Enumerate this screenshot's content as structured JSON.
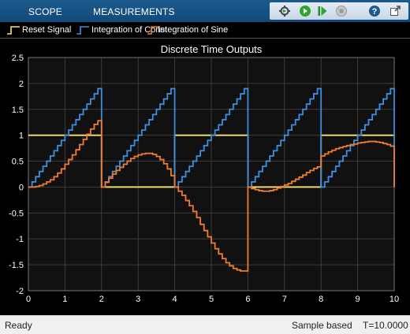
{
  "toolstrip": {
    "tabs": [
      "SCOPE",
      "MEASUREMENTS"
    ],
    "buttons": [
      "step-settings-icon",
      "run-icon",
      "step-forward-icon",
      "stop-icon",
      "help-icon",
      "undock-icon"
    ]
  },
  "colors": {
    "reset": "#ffe36e",
    "constant": "#3d8fe0",
    "sine": "#f07c2f",
    "axes_bg": "#111111",
    "grid": "#3c3c3c",
    "text": "#ffffff"
  },
  "legend": {
    "items": [
      "Reset Signal",
      "Integration of Const",
      "Integration of Sine"
    ]
  },
  "chart_data": {
    "type": "line",
    "title": "Discrete Time Outputs",
    "xlim": [
      0,
      10
    ],
    "ylim": [
      -2,
      2.5
    ],
    "xticks": [
      "0",
      "1",
      "2",
      "3",
      "4",
      "5",
      "6",
      "7",
      "8",
      "9",
      "10"
    ],
    "yticks": [
      "2.5",
      "2",
      "1.5",
      "1",
      "0.5",
      "0",
      "-0.5",
      "-1",
      "-1.5",
      "-2"
    ],
    "grid": true,
    "legend_position": "top",
    "series": [
      {
        "name": "Reset Signal",
        "shape": "stairs",
        "x": [
          0,
          2,
          4,
          6,
          8,
          10
        ],
        "y": [
          1,
          0,
          1,
          0,
          1,
          1
        ]
      },
      {
        "name": "Integration of Const",
        "shape": "stairs",
        "x": [
          0,
          0.1,
          0.2,
          0.3,
          0.4,
          0.5,
          0.6,
          0.7,
          0.8,
          0.9,
          1.0,
          1.1,
          1.2,
          1.3,
          1.4,
          1.5,
          1.6,
          1.7,
          1.8,
          1.9,
          2.0,
          2.1,
          2.2,
          2.3,
          2.4,
          2.5,
          2.6,
          2.7,
          2.8,
          2.9,
          3.0,
          3.1,
          3.2,
          3.3,
          3.4,
          3.5,
          3.6,
          3.7,
          3.8,
          3.9,
          4.0,
          4.1,
          4.2,
          4.3,
          4.4,
          4.5,
          4.6,
          4.7,
          4.8,
          4.9,
          5.0,
          5.1,
          5.2,
          5.3,
          5.4,
          5.5,
          5.6,
          5.7,
          5.8,
          5.9,
          6.0,
          6.1,
          6.2,
          6.3,
          6.4,
          6.5,
          6.6,
          6.7,
          6.8,
          6.9,
          7.0,
          7.1,
          7.2,
          7.3,
          7.4,
          7.5,
          7.6,
          7.7,
          7.8,
          7.9,
          8.0,
          8.1,
          8.2,
          8.3,
          8.4,
          8.5,
          8.6,
          8.7,
          8.8,
          8.9,
          9.0,
          9.1,
          9.2,
          9.3,
          9.4,
          9.5,
          9.6,
          9.7,
          9.8,
          9.9,
          10.0
        ],
        "y": [
          0,
          0.1,
          0.2,
          0.3,
          0.4,
          0.5,
          0.6,
          0.7,
          0.8,
          0.9,
          1.0,
          1.1,
          1.2,
          1.3,
          1.4,
          1.5,
          1.6,
          1.7,
          1.8,
          1.9,
          0,
          0.1,
          0.2,
          0.3,
          0.4,
          0.5,
          0.6,
          0.7,
          0.8,
          0.9,
          1.0,
          1.1,
          1.2,
          1.3,
          1.4,
          1.5,
          1.6,
          1.7,
          1.8,
          1.9,
          0,
          0.1,
          0.2,
          0.3,
          0.4,
          0.5,
          0.6,
          0.7,
          0.8,
          0.9,
          1.0,
          1.1,
          1.2,
          1.3,
          1.4,
          1.5,
          1.6,
          1.7,
          1.8,
          1.9,
          0,
          0.1,
          0.2,
          0.3,
          0.4,
          0.5,
          0.6,
          0.7,
          0.8,
          0.9,
          1.0,
          1.1,
          1.2,
          1.3,
          1.4,
          1.5,
          1.6,
          1.7,
          1.8,
          1.9,
          0,
          0.1,
          0.2,
          0.3,
          0.4,
          0.5,
          0.6,
          0.7,
          0.8,
          0.9,
          1.0,
          1.1,
          1.2,
          1.3,
          1.4,
          1.5,
          1.6,
          1.7,
          1.8,
          1.9,
          0
        ]
      },
      {
        "name": "Integration of Sine",
        "shape": "stairs",
        "x": [
          0,
          0.1,
          0.2,
          0.3,
          0.4,
          0.5,
          0.6,
          0.7,
          0.8,
          0.9,
          1.0,
          1.1,
          1.2,
          1.3,
          1.4,
          1.5,
          1.6,
          1.7,
          1.8,
          1.9,
          2.0,
          2.1,
          2.2,
          2.3,
          2.4,
          2.5,
          2.6,
          2.7,
          2.8,
          2.9,
          3.0,
          3.1,
          3.2,
          3.3,
          3.4,
          3.5,
          3.6,
          3.7,
          3.8,
          3.9,
          4.0,
          4.1,
          4.2,
          4.3,
          4.4,
          4.5,
          4.6,
          4.7,
          4.8,
          4.9,
          5.0,
          5.1,
          5.2,
          5.3,
          5.4,
          5.5,
          5.6,
          5.7,
          5.8,
          5.9,
          6.0,
          6.1,
          6.2,
          6.3,
          6.4,
          6.5,
          6.6,
          6.7,
          6.8,
          6.9,
          7.0,
          7.1,
          7.2,
          7.3,
          7.4,
          7.5,
          7.6,
          7.7,
          7.8,
          7.9,
          8.0,
          8.1,
          8.2,
          8.3,
          8.4,
          8.5,
          8.6,
          8.7,
          8.8,
          8.9,
          9.0,
          9.1,
          9.2,
          9.3,
          9.4,
          9.5,
          9.6,
          9.7,
          9.8,
          9.9,
          10.0
        ],
        "y": [
          0,
          0.0,
          0.01,
          0.03,
          0.06,
          0.1,
          0.14,
          0.2,
          0.27,
          0.35,
          0.44,
          0.53,
          0.62,
          0.72,
          0.82,
          0.92,
          1.02,
          1.12,
          1.21,
          1.28,
          0,
          0.09,
          0.17,
          0.25,
          0.32,
          0.38,
          0.44,
          0.5,
          0.55,
          0.59,
          0.62,
          0.64,
          0.65,
          0.65,
          0.63,
          0.59,
          0.53,
          0.45,
          0.35,
          0.22,
          0,
          -0.08,
          -0.16,
          -0.26,
          -0.36,
          -0.47,
          -0.59,
          -0.72,
          -0.84,
          -0.96,
          -1.08,
          -1.19,
          -1.29,
          -1.38,
          -1.46,
          -1.52,
          -1.57,
          -1.6,
          -1.62,
          -1.62,
          0,
          -0.03,
          -0.05,
          -0.07,
          -0.08,
          -0.08,
          -0.07,
          -0.05,
          -0.02,
          0.01,
          0.04,
          0.07,
          0.11,
          0.15,
          0.19,
          0.23,
          0.28,
          0.32,
          0.36,
          0.39,
          0.6,
          0.64,
          0.68,
          0.71,
          0.74,
          0.76,
          0.78,
          0.8,
          0.82,
          0.83,
          0.85,
          0.86,
          0.87,
          0.88,
          0.88,
          0.87,
          0.86,
          0.84,
          0.82,
          0.79,
          0
        ]
      }
    ]
  },
  "status": {
    "left": "Ready",
    "mode": "Sample based",
    "time": "T=10.0000"
  }
}
